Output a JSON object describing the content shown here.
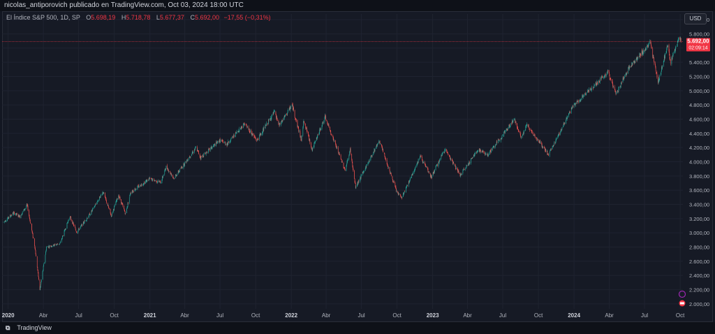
{
  "header": {
    "publish_line": "nicolas_antiporovich publicado en TradingView.com, Oct 03, 2024 18:00 UTC"
  },
  "legend": {
    "symbol": "El Índice S&P 500, 1D, SP",
    "open_label": "O",
    "open": "5.698,19",
    "high_label": "H",
    "high": "5.718,78",
    "low_label": "L",
    "low": "5.677,37",
    "close_label": "C",
    "close": "5.692,00",
    "change": "−17,55 (−0,31%)"
  },
  "currency_button": "USD",
  "price_tag": {
    "price": "5.692,00",
    "countdown": "02:09:14"
  },
  "footer": {
    "brand": "TradingView"
  },
  "colors": {
    "up": "#26a69a",
    "down": "#ef5350",
    "tag": "#f23645"
  },
  "chart_data": {
    "type": "candlestick",
    "title": "",
    "yaxis": {
      "range": [
        1950,
        6080
      ],
      "ticks": [
        2000,
        2200,
        2400,
        2600,
        2800,
        3000,
        3200,
        3400,
        3600,
        3800,
        4000,
        4200,
        4400,
        4600,
        4800,
        5000,
        5200,
        5400,
        5600,
        5800,
        6000
      ],
      "tick_labels": [
        "2.000,00",
        "2.200,00",
        "2.400,00",
        "2.600,00",
        "2.800,00",
        "3.000,00",
        "3.200,00",
        "3.400,00",
        "3.600,00",
        "3.800,00",
        "4.000,00",
        "4.200,00",
        "4.400,00",
        "4.600,00",
        "4.800,00",
        "5.000,00",
        "5.200,00",
        "5.400,00",
        "5.600,00",
        "5.800,00",
        "6.000,00"
      ]
    },
    "xaxis": {
      "range": [
        "2019-12-20",
        "2024-10-08"
      ],
      "ticks": [
        {
          "date": "2020-01-01",
          "label": "2020",
          "bold": true
        },
        {
          "date": "2020-04-01",
          "label": "Abr"
        },
        {
          "date": "2020-07-01",
          "label": "Jul"
        },
        {
          "date": "2020-10-01",
          "label": "Oct"
        },
        {
          "date": "2021-01-01",
          "label": "2021",
          "bold": true
        },
        {
          "date": "2021-04-01",
          "label": "Abr"
        },
        {
          "date": "2021-07-01",
          "label": "Jul"
        },
        {
          "date": "2021-10-01",
          "label": "Oct"
        },
        {
          "date": "2022-01-01",
          "label": "2022",
          "bold": true
        },
        {
          "date": "2022-04-01",
          "label": "Abr"
        },
        {
          "date": "2022-07-01",
          "label": "Jul"
        },
        {
          "date": "2022-10-01",
          "label": "Oct"
        },
        {
          "date": "2023-01-01",
          "label": "2023",
          "bold": true
        },
        {
          "date": "2023-04-01",
          "label": "Abr"
        },
        {
          "date": "2023-07-01",
          "label": "Jul"
        },
        {
          "date": "2023-10-01",
          "label": "Oct"
        },
        {
          "date": "2024-01-01",
          "label": "2024",
          "bold": true
        },
        {
          "date": "2024-04-01",
          "label": "Abr"
        },
        {
          "date": "2024-07-01",
          "label": "Jul"
        },
        {
          "date": "2024-10-01",
          "label": "Oct"
        }
      ]
    },
    "current_price": 5692,
    "grid": true,
    "series": [
      {
        "path": [
          [
            "2019-12-20",
            3150
          ],
          [
            "2020-01-15",
            3280
          ],
          [
            "2020-01-31",
            3230
          ],
          [
            "2020-02-19",
            3390
          ],
          [
            "2020-03-10",
            2800
          ],
          [
            "2020-03-23",
            2200
          ],
          [
            "2020-04-09",
            2800
          ],
          [
            "2020-05-14",
            2850
          ],
          [
            "2020-06-08",
            3230
          ],
          [
            "2020-06-26",
            3010
          ],
          [
            "2020-07-31",
            3270
          ],
          [
            "2020-09-02",
            3580
          ],
          [
            "2020-09-23",
            3240
          ],
          [
            "2020-10-12",
            3530
          ],
          [
            "2020-10-30",
            3270
          ],
          [
            "2020-11-12",
            3570
          ],
          [
            "2020-12-31",
            3760
          ],
          [
            "2021-01-29",
            3710
          ],
          [
            "2021-02-12",
            3930
          ],
          [
            "2021-03-04",
            3770
          ],
          [
            "2021-04-30",
            4200
          ],
          [
            "2021-05-12",
            4060
          ],
          [
            "2021-06-30",
            4300
          ],
          [
            "2021-07-19",
            4250
          ],
          [
            "2021-09-02",
            4540
          ],
          [
            "2021-10-04",
            4300
          ],
          [
            "2021-11-18",
            4700
          ],
          [
            "2021-12-01",
            4510
          ],
          [
            "2022-01-03",
            4800
          ],
          [
            "2022-01-27",
            4300
          ],
          [
            "2022-02-02",
            4590
          ],
          [
            "2022-02-24",
            4170
          ],
          [
            "2022-03-29",
            4630
          ],
          [
            "2022-05-20",
            3880
          ],
          [
            "2022-06-02",
            4170
          ],
          [
            "2022-06-16",
            3640
          ],
          [
            "2022-08-16",
            4300
          ],
          [
            "2022-09-30",
            3580
          ],
          [
            "2022-10-13",
            3490
          ],
          [
            "2022-11-30",
            4080
          ],
          [
            "2022-12-28",
            3780
          ],
          [
            "2023-02-02",
            4180
          ],
          [
            "2023-03-13",
            3810
          ],
          [
            "2023-04-28",
            4170
          ],
          [
            "2023-05-24",
            4100
          ],
          [
            "2023-07-31",
            4600
          ],
          [
            "2023-08-18",
            4340
          ],
          [
            "2023-09-01",
            4520
          ],
          [
            "2023-10-27",
            4100
          ],
          [
            "2023-12-29",
            4780
          ],
          [
            "2024-03-28",
            5260
          ],
          [
            "2024-04-19",
            4960
          ],
          [
            "2024-05-21",
            5320
          ],
          [
            "2024-07-16",
            5670
          ],
          [
            "2024-08-05",
            5120
          ],
          [
            "2024-08-30",
            5650
          ],
          [
            "2024-09-06",
            5400
          ],
          [
            "2024-09-30",
            5760
          ],
          [
            "2024-10-03",
            5692
          ]
        ]
      }
    ]
  }
}
